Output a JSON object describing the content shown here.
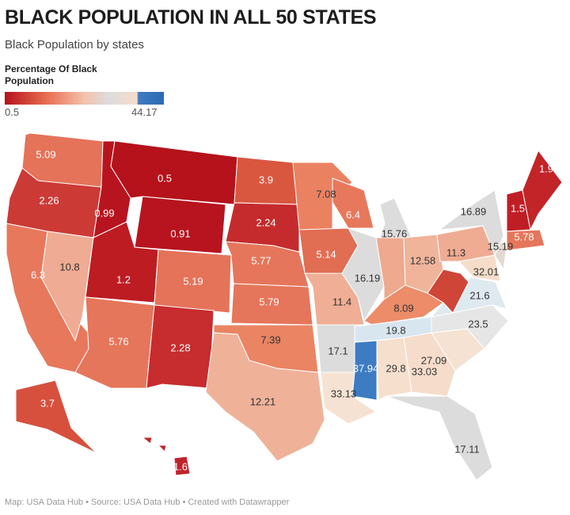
{
  "header": {
    "title": "BLACK POPULATION IN ALL 50 STATES",
    "subtitle": "Black Population by states"
  },
  "legend": {
    "title": "Percentage Of Black Population",
    "min": "0.5",
    "max": "44.17",
    "colors": {
      "low": "#b5121b",
      "mid_low": "#e7694f",
      "mid": "#dcdcdc",
      "high": "#2c6ab3"
    }
  },
  "footer": "Map: USA Data Hub • Source: USA Data Hub • Created with Datawrapper",
  "chart_data": {
    "type": "choropleth",
    "value_label": "Percentage Of Black Population",
    "range": [
      0.5,
      44.17
    ],
    "regions": [
      {
        "value": "5.09",
        "fill": "#e4735a"
      },
      {
        "value": "2.26",
        "fill": "#cc3a36"
      },
      {
        "value": "6.3",
        "fill": "#e7785c"
      },
      {
        "value": "10.8",
        "fill": "#efab93"
      },
      {
        "value": "0.99",
        "fill": "#b8141f"
      },
      {
        "value": "0.5",
        "fill": "#b5121b"
      },
      {
        "value": "0.91",
        "fill": "#b7141f"
      },
      {
        "value": "1.2",
        "fill": "#bd1c23"
      },
      {
        "value": "5.19",
        "fill": "#e4735a"
      },
      {
        "value": "5.76",
        "fill": "#e5765b"
      },
      {
        "value": "2.28",
        "fill": "#c72c2e"
      },
      {
        "value": "3.9",
        "fill": "#d9573f"
      },
      {
        "value": "2.24",
        "fill": "#c52b2d"
      },
      {
        "value": "5.77",
        "fill": "#e5765b"
      },
      {
        "value": "5.79",
        "fill": "#e5765b"
      },
      {
        "value": "7.39",
        "fill": "#ea8463"
      },
      {
        "value": "12.21",
        "fill": "#efb299"
      },
      {
        "value": "7.08",
        "fill": "#ea8262"
      },
      {
        "value": "5.14",
        "fill": "#e16d52"
      },
      {
        "value": "11.4",
        "fill": "#efae95"
      },
      {
        "value": "17.1",
        "fill": "#dcdcdc"
      },
      {
        "value": "33.13",
        "fill": "#f6e2d2"
      },
      {
        "value": "6.4",
        "fill": "#e7785c"
      },
      {
        "value": "16.19",
        "fill": "#dcdcdc"
      },
      {
        "value": "15.76",
        "fill": "#dcdcdc"
      },
      {
        "value": "",
        "fill": "#eea98f"
      },
      {
        "value": "12.58",
        "fill": "#f0b49b"
      },
      {
        "value": "8.09",
        "fill": "#ec8c68"
      },
      {
        "value": "19.8",
        "fill": "#d8e6f0"
      },
      {
        "value": "37.94",
        "fill": "#3d7cc2"
      },
      {
        "value": "29.8",
        "fill": "#f6dfcd"
      },
      {
        "value": "27.09",
        "fill": "#f6dccb"
      },
      {
        "value": "17.11",
        "fill": "#dcdcdc"
      },
      {
        "value": "33.03",
        "fill": "#f6e2d2"
      },
      {
        "value": "23.5",
        "fill": "#e6e6e6"
      },
      {
        "value": "21.6",
        "fill": "#dfe9f0"
      },
      {
        "value": "",
        "fill": "#cf4538"
      },
      {
        "value": "11.3",
        "fill": "#efac93"
      },
      {
        "value": "32.01",
        "fill": "#f5ddca"
      },
      {
        "value": "15.19",
        "fill": "#e4d8d2"
      },
      {
        "value": "16.89",
        "fill": "#dcdcdc"
      },
      {
        "value": "1.5",
        "fill": "#bf1e25"
      },
      {
        "value": "1.9",
        "fill": "#c22428"
      },
      {
        "value": "5.78",
        "fill": "#e5765b"
      },
      {
        "value": "3.7",
        "fill": "#d6503d"
      },
      {
        "value": "1.6",
        "fill": "#c0222a"
      }
    ]
  }
}
